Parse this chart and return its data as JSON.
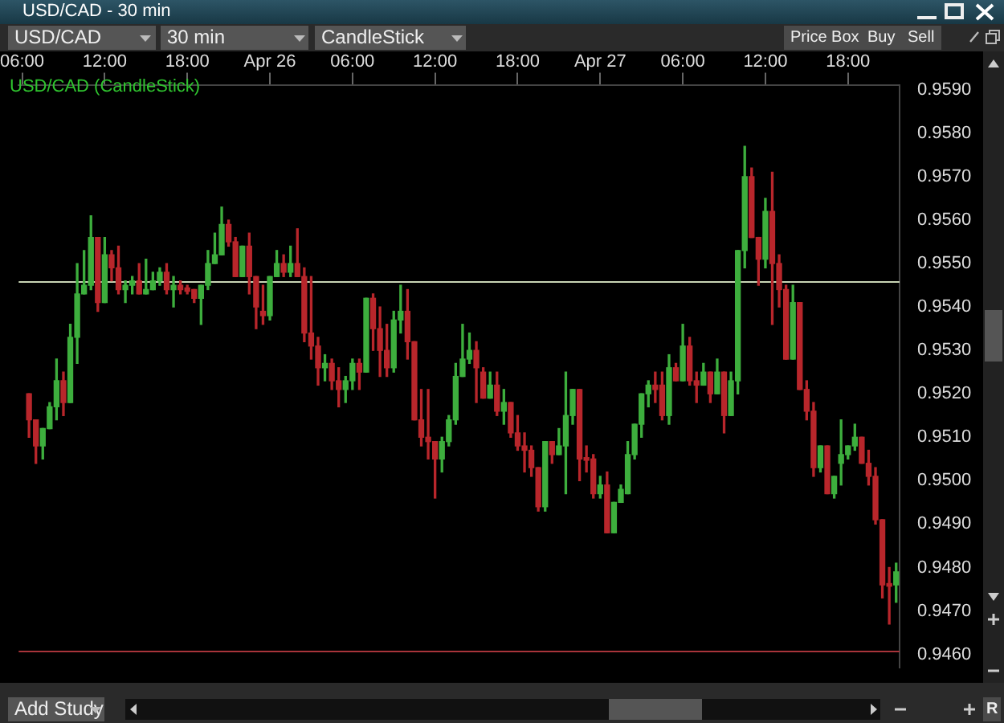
{
  "chart_data": {
    "type": "candlestick",
    "title": "USD/CAD - 30 min",
    "subtitle": "USD/CAD (CandleStick)",
    "annotations": [
      "USD/CAD",
      "30 min",
      "CandleStick",
      "Price Box",
      "Buy",
      "Sell",
      "Add Study",
      "R"
    ],
    "categories": [
      "06:00",
      null,
      null,
      null,
      null,
      null,
      null,
      null,
      null,
      null,
      null,
      null,
      "12:00",
      null,
      null,
      null,
      null,
      null,
      null,
      null,
      null,
      null,
      null,
      null,
      "18:00",
      null,
      null,
      null,
      null,
      null,
      null,
      null,
      null,
      null,
      null,
      null,
      "Apr 26",
      null,
      null,
      null,
      null,
      null,
      null,
      null,
      null,
      null,
      null,
      null,
      "06:00",
      null,
      null,
      null,
      null,
      null,
      null,
      null,
      null,
      null,
      null,
      null,
      "12:00",
      null,
      null,
      null,
      null,
      null,
      null,
      null,
      null,
      null,
      null,
      null,
      "18:00",
      null,
      null,
      null,
      null,
      null,
      null,
      null,
      null,
      null,
      null,
      null,
      "Apr 27",
      null,
      null,
      null,
      null,
      null,
      null,
      null,
      null,
      null,
      null,
      null,
      "06:00",
      null,
      null,
      null,
      null,
      null,
      null,
      null,
      null,
      null,
      null,
      null,
      "12:00",
      null,
      null,
      null,
      null,
      null,
      null,
      null,
      null,
      null,
      null,
      null,
      "18:00",
      null,
      null,
      null,
      null,
      null,
      null,
      null
    ],
    "ohlc": [
      null,
      [
        0.952,
        0.952,
        0.951,
        0.9514
      ],
      [
        0.9514,
        0.9514,
        0.9504,
        0.9508
      ],
      [
        0.9508,
        0.9512,
        0.9505,
        0.9512
      ],
      [
        0.9512,
        0.9518,
        0.9512,
        0.9517
      ],
      [
        0.9517,
        0.9528,
        0.9514,
        0.9523
      ],
      [
        0.9523,
        0.9525,
        0.9515,
        0.9518
      ],
      [
        0.9518,
        0.9536,
        0.9518,
        0.9533
      ],
      [
        0.9533,
        0.955,
        0.9527,
        0.9543
      ],
      [
        0.9543,
        0.9553,
        0.9543,
        0.9545
      ],
      [
        0.9545,
        0.9561,
        0.9544,
        0.9556
      ],
      [
        0.9556,
        0.9556,
        0.9539,
        0.9541
      ],
      [
        0.9541,
        0.9556,
        0.9541,
        0.9552
      ],
      [
        0.9552,
        0.9553,
        0.9546,
        0.9549
      ],
      [
        0.9549,
        0.9554,
        0.9543,
        0.9544
      ],
      [
        0.9544,
        0.9546,
        0.9541,
        0.9545
      ],
      [
        0.9545,
        0.9547,
        0.9543,
        0.9546
      ],
      [
        0.9546,
        0.955,
        0.9543,
        0.9543
      ],
      [
        0.9543,
        0.9551,
        0.9543,
        0.9544
      ],
      [
        0.9544,
        0.9548,
        0.9544,
        0.9546
      ],
      [
        0.9546,
        0.9549,
        0.9545,
        0.9548
      ],
      [
        0.9548,
        0.955,
        0.9543,
        0.9544
      ],
      [
        0.9544,
        0.9547,
        0.954,
        0.9545
      ],
      [
        0.9545,
        0.9546,
        0.9543,
        0.9544
      ],
      [
        0.95444,
        0.9545,
        0.9543,
        0.95436
      ],
      [
        0.9544,
        0.9544,
        0.9541,
        0.9542
      ],
      [
        0.9542,
        0.9545,
        0.9536,
        0.9545
      ],
      [
        0.9545,
        0.9553,
        0.9544,
        0.955
      ],
      [
        0.955,
        0.9557,
        0.955,
        0.9552
      ],
      [
        0.9552,
        0.9563,
        0.9552,
        0.9559
      ],
      [
        0.9559,
        0.956,
        0.9554,
        0.9555
      ],
      [
        0.9555,
        0.9556,
        0.9547,
        0.9547
      ],
      [
        0.9547,
        0.9554,
        0.9547,
        0.9554
      ],
      [
        0.9554,
        0.9557,
        0.9543,
        0.9547
      ],
      [
        0.9547,
        0.9547,
        0.9535,
        0.954
      ],
      [
        0.9539,
        0.9545,
        0.9536,
        0.9538
      ],
      [
        0.9538,
        0.9547,
        0.9537,
        0.9547
      ],
      [
        0.9547,
        0.9553,
        0.9547,
        0.955
      ],
      [
        0.955,
        0.9552,
        0.9547,
        0.9548
      ],
      [
        0.9548,
        0.9554,
        0.9547,
        0.955
      ],
      [
        0.955,
        0.9558,
        0.9547,
        0.9547
      ],
      [
        0.9547,
        0.9549,
        0.9532,
        0.9534
      ],
      [
        0.9534,
        0.9547,
        0.9528,
        0.9531
      ],
      [
        0.9531,
        0.9533,
        0.9522,
        0.9526
      ],
      [
        0.9526,
        0.9529,
        0.9523,
        0.9527
      ],
      [
        0.9527,
        0.9528,
        0.9521,
        0.9523
      ],
      [
        0.9523,
        0.9526,
        0.9517,
        0.9521
      ],
      [
        0.9521,
        0.9524,
        0.9518,
        0.9523
      ],
      [
        0.9523,
        0.9528,
        0.9521,
        0.9527
      ],
      [
        0.9527,
        0.9528,
        0.9521,
        0.9525
      ],
      [
        0.9525,
        0.9542,
        0.9525,
        0.9542
      ],
      [
        0.9542,
        0.9543,
        0.953,
        0.9535
      ],
      [
        0.9535,
        0.954,
        0.9524,
        0.953
      ],
      [
        0.953,
        0.9536,
        0.9524,
        0.9526
      ],
      [
        0.9526,
        0.9539,
        0.9525,
        0.9537
      ],
      [
        0.9537,
        0.9545,
        0.9534,
        0.9539
      ],
      [
        0.9539,
        0.9544,
        0.9528,
        0.9532
      ],
      [
        0.9532,
        0.9532,
        0.9514,
        0.9514
      ],
      [
        0.9514,
        0.9521,
        0.9508,
        0.951
      ],
      [
        0.951,
        0.9521,
        0.9505,
        0.9509
      ],
      [
        0.9509,
        0.9509,
        0.9496,
        0.9505
      ],
      [
        0.9505,
        0.951,
        0.9502,
        0.9509
      ],
      [
        0.9509,
        0.9515,
        0.9508,
        0.9514
      ],
      [
        0.9514,
        0.9527,
        0.9513,
        0.9524
      ],
      [
        0.9524,
        0.9536,
        0.9524,
        0.9528
      ],
      [
        0.9528,
        0.9534,
        0.9527,
        0.953
      ],
      [
        0.953,
        0.9532,
        0.9518,
        0.9526
      ],
      [
        0.9525,
        0.9526,
        0.9519,
        0.9519
      ],
      [
        0.9519,
        0.9525,
        0.9519,
        0.9522
      ],
      [
        0.9522,
        0.9525,
        0.9515,
        0.9516
      ],
      [
        0.9516,
        0.9521,
        0.9513,
        0.9518
      ],
      [
        0.9518,
        0.9518,
        0.951,
        0.9511
      ],
      [
        0.9511,
        0.9515,
        0.9507,
        0.9508
      ],
      [
        0.9508,
        0.9511,
        0.9502,
        0.9507
      ],
      [
        0.9507,
        0.9508,
        0.9501,
        0.9503
      ],
      [
        0.9503,
        0.9503,
        0.9493,
        0.9494
      ],
      [
        0.9494,
        0.9509,
        0.9493,
        0.9509
      ],
      [
        0.9509,
        0.9509,
        0.9504,
        0.9506
      ],
      [
        0.9506,
        0.9512,
        0.9506,
        0.9508
      ],
      [
        0.9508,
        0.9525,
        0.9497,
        0.9515
      ],
      [
        0.9515,
        0.9521,
        0.9513,
        0.9521
      ],
      [
        0.9521,
        0.9521,
        0.95,
        0.9505
      ],
      [
        0.95053,
        0.9508,
        0.9502,
        0.95047
      ],
      [
        0.9505,
        0.9506,
        0.9496,
        0.9497
      ],
      [
        0.9497,
        0.9501,
        0.9496,
        0.9499
      ],
      [
        0.9499,
        0.9502,
        0.9488,
        0.9488
      ],
      [
        0.9488,
        0.9495,
        0.9488,
        0.9495
      ],
      [
        0.9495,
        0.9499,
        0.9495,
        0.9498
      ],
      [
        0.9497,
        0.9509,
        0.9497,
        0.9506
      ],
      [
        0.9506,
        0.9513,
        0.9505,
        0.9513
      ],
      [
        0.9513,
        0.952,
        0.951,
        0.952
      ],
      [
        0.952,
        0.9523,
        0.9517,
        0.9522
      ],
      [
        0.9522,
        0.9525,
        0.9518,
        0.9521
      ],
      [
        0.9522,
        0.9525,
        0.9514,
        0.9515
      ],
      [
        0.9515,
        0.9529,
        0.9513,
        0.9526
      ],
      [
        0.9526,
        0.9527,
        0.9523,
        0.9523
      ],
      [
        0.9523,
        0.9536,
        0.9523,
        0.9531
      ],
      [
        0.9531,
        0.9533,
        0.9522,
        0.9523
      ],
      [
        0.9523,
        0.9525,
        0.9518,
        0.9522
      ],
      [
        0.9522,
        0.9527,
        0.9522,
        0.9525
      ],
      [
        0.9525,
        0.9525,
        0.9518,
        0.952
      ],
      [
        0.952,
        0.9528,
        0.952,
        0.9525
      ],
      [
        0.9525,
        0.9525,
        0.9511,
        0.9515
      ],
      [
        0.9515,
        0.9525,
        0.9515,
        0.9523
      ],
      [
        0.9523,
        0.9553,
        0.952,
        0.9553
      ],
      [
        0.9553,
        0.9577,
        0.9549,
        0.957
      ],
      [
        0.957,
        0.9572,
        0.9556,
        0.9556
      ],
      [
        0.9556,
        0.9556,
        0.9545,
        0.9551
      ],
      [
        0.9551,
        0.9565,
        0.9549,
        0.9562
      ],
      [
        0.9562,
        0.9571,
        0.9536,
        0.955
      ],
      [
        0.955,
        0.9552,
        0.954,
        0.9544
      ],
      [
        0.9544,
        0.9545,
        0.9528,
        0.9528
      ],
      [
        0.9528,
        0.9545,
        0.9528,
        0.9541
      ],
      [
        0.9541,
        0.9541,
        0.9521,
        0.9521
      ],
      [
        0.9521,
        0.9523,
        0.9514,
        0.9516
      ],
      [
        0.9516,
        0.9518,
        0.9501,
        0.9503
      ],
      [
        0.9503,
        0.9508,
        0.9502,
        0.9508
      ],
      [
        0.9508,
        0.9508,
        0.9497,
        0.9497
      ],
      [
        0.9497,
        0.9501,
        0.9496,
        0.9501
      ],
      [
        0.9504,
        0.9514,
        0.9499,
        0.9506
      ],
      [
        0.9506,
        0.9508,
        0.9505,
        0.9508
      ],
      [
        0.9508,
        0.9513,
        0.9507,
        0.951
      ],
      [
        0.951,
        0.951,
        0.9504,
        0.9504
      ],
      [
        0.9504,
        0.9507,
        0.9499,
        0.9501
      ],
      [
        0.9501,
        0.9503,
        0.949,
        0.9491
      ],
      [
        0.9491,
        0.9491,
        0.9473,
        0.9476
      ],
      [
        0.94763,
        0.948,
        0.9467,
        0.94757
      ],
      [
        0.9476,
        0.9481,
        0.9472,
        0.9479
      ]
    ],
    "colors": [
      null,
      "#b8262b",
      "#b8262b",
      "#3dae3d",
      "#3dae3d",
      "#3dae3d",
      "#b8262b",
      "#3dae3d",
      "#3dae3d",
      "#3dae3d",
      "#3dae3d",
      "#b8262b",
      "#3dae3d",
      "#b8262b",
      "#b8262b",
      "#3dae3d",
      "#3dae3d",
      "#b8262b",
      "#3dae3d",
      "#3dae3d",
      "#3dae3d",
      "#b8262b",
      "#3dae3d",
      "#b8262b",
      "#b8262b",
      "#b8262b",
      "#3dae3d",
      "#3dae3d",
      "#3dae3d",
      "#3dae3d",
      "#b8262b",
      "#b8262b",
      "#3dae3d",
      "#b8262b",
      "#b8262b",
      "#b8262b",
      "#3dae3d",
      "#3dae3d",
      "#b8262b",
      "#3dae3d",
      "#b8262b",
      "#b8262b",
      "#b8262b",
      "#b8262b",
      "#3dae3d",
      "#b8262b",
      "#b8262b",
      "#3dae3d",
      "#3dae3d",
      "#b8262b",
      "#3dae3d",
      "#b8262b",
      "#b8262b",
      "#b8262b",
      "#3dae3d",
      "#3dae3d",
      "#b8262b",
      "#b8262b",
      "#b8262b",
      "#b8262b",
      "#b8262b",
      "#3dae3d",
      "#3dae3d",
      "#3dae3d",
      "#3dae3d",
      "#3dae3d",
      "#b8262b",
      "#b8262b",
      "#3dae3d",
      "#b8262b",
      "#3dae3d",
      "#b8262b",
      "#b8262b",
      "#b8262b",
      "#b8262b",
      "#b8262b",
      "#3dae3d",
      "#b8262b",
      "#3dae3d",
      "#3dae3d",
      "#3dae3d",
      "#b8262b",
      "#b8262b",
      "#b8262b",
      "#3dae3d",
      "#b8262b",
      "#3dae3d",
      "#3dae3d",
      "#3dae3d",
      "#3dae3d",
      "#3dae3d",
      "#3dae3d",
      "#b8262b",
      "#b8262b",
      "#3dae3d",
      "#b8262b",
      "#3dae3d",
      "#b8262b",
      "#b8262b",
      "#3dae3d",
      "#b8262b",
      "#3dae3d",
      "#b8262b",
      "#3dae3d",
      "#3dae3d",
      "#3dae3d",
      "#b8262b",
      "#b8262b",
      "#3dae3d",
      "#b8262b",
      "#b8262b",
      "#b8262b",
      "#3dae3d",
      "#b8262b",
      "#b8262b",
      "#b8262b",
      "#3dae3d",
      "#b8262b",
      "#3dae3d",
      "#3dae3d",
      "#3dae3d",
      "#3dae3d",
      "#b8262b",
      "#b8262b",
      "#b8262b",
      "#b8262b",
      "#b8262b",
      "#3dae3d"
    ],
    "ylim": [
      0.9457,
      0.9591
    ],
    "yticks": [
      {
        "value": 0.946,
        "label": "0.9460"
      },
      {
        "value": 0.947,
        "label": "0.9470"
      },
      {
        "value": 0.948,
        "label": "0.9480"
      },
      {
        "value": 0.949,
        "label": "0.9490"
      },
      {
        "value": 0.95,
        "label": "0.9500"
      },
      {
        "value": 0.951,
        "label": "0.9510"
      },
      {
        "value": 0.952,
        "label": "0.9520"
      },
      {
        "value": 0.953,
        "label": "0.9530"
      },
      {
        "value": 0.954,
        "label": "0.9540"
      },
      {
        "value": 0.955,
        "label": "0.9550"
      },
      {
        "value": 0.956,
        "label": "0.9560"
      },
      {
        "value": 0.957,
        "label": "0.9570"
      },
      {
        "value": 0.958,
        "label": "0.9580"
      },
      {
        "value": 0.959,
        "label": "0.9590"
      }
    ],
    "ref_lines": [
      {
        "axis": "y",
        "value": 0.9546,
        "color": "#c8d4b4"
      },
      {
        "axis": "y",
        "value": 0.9461,
        "color": "#a8343a"
      }
    ]
  }
}
